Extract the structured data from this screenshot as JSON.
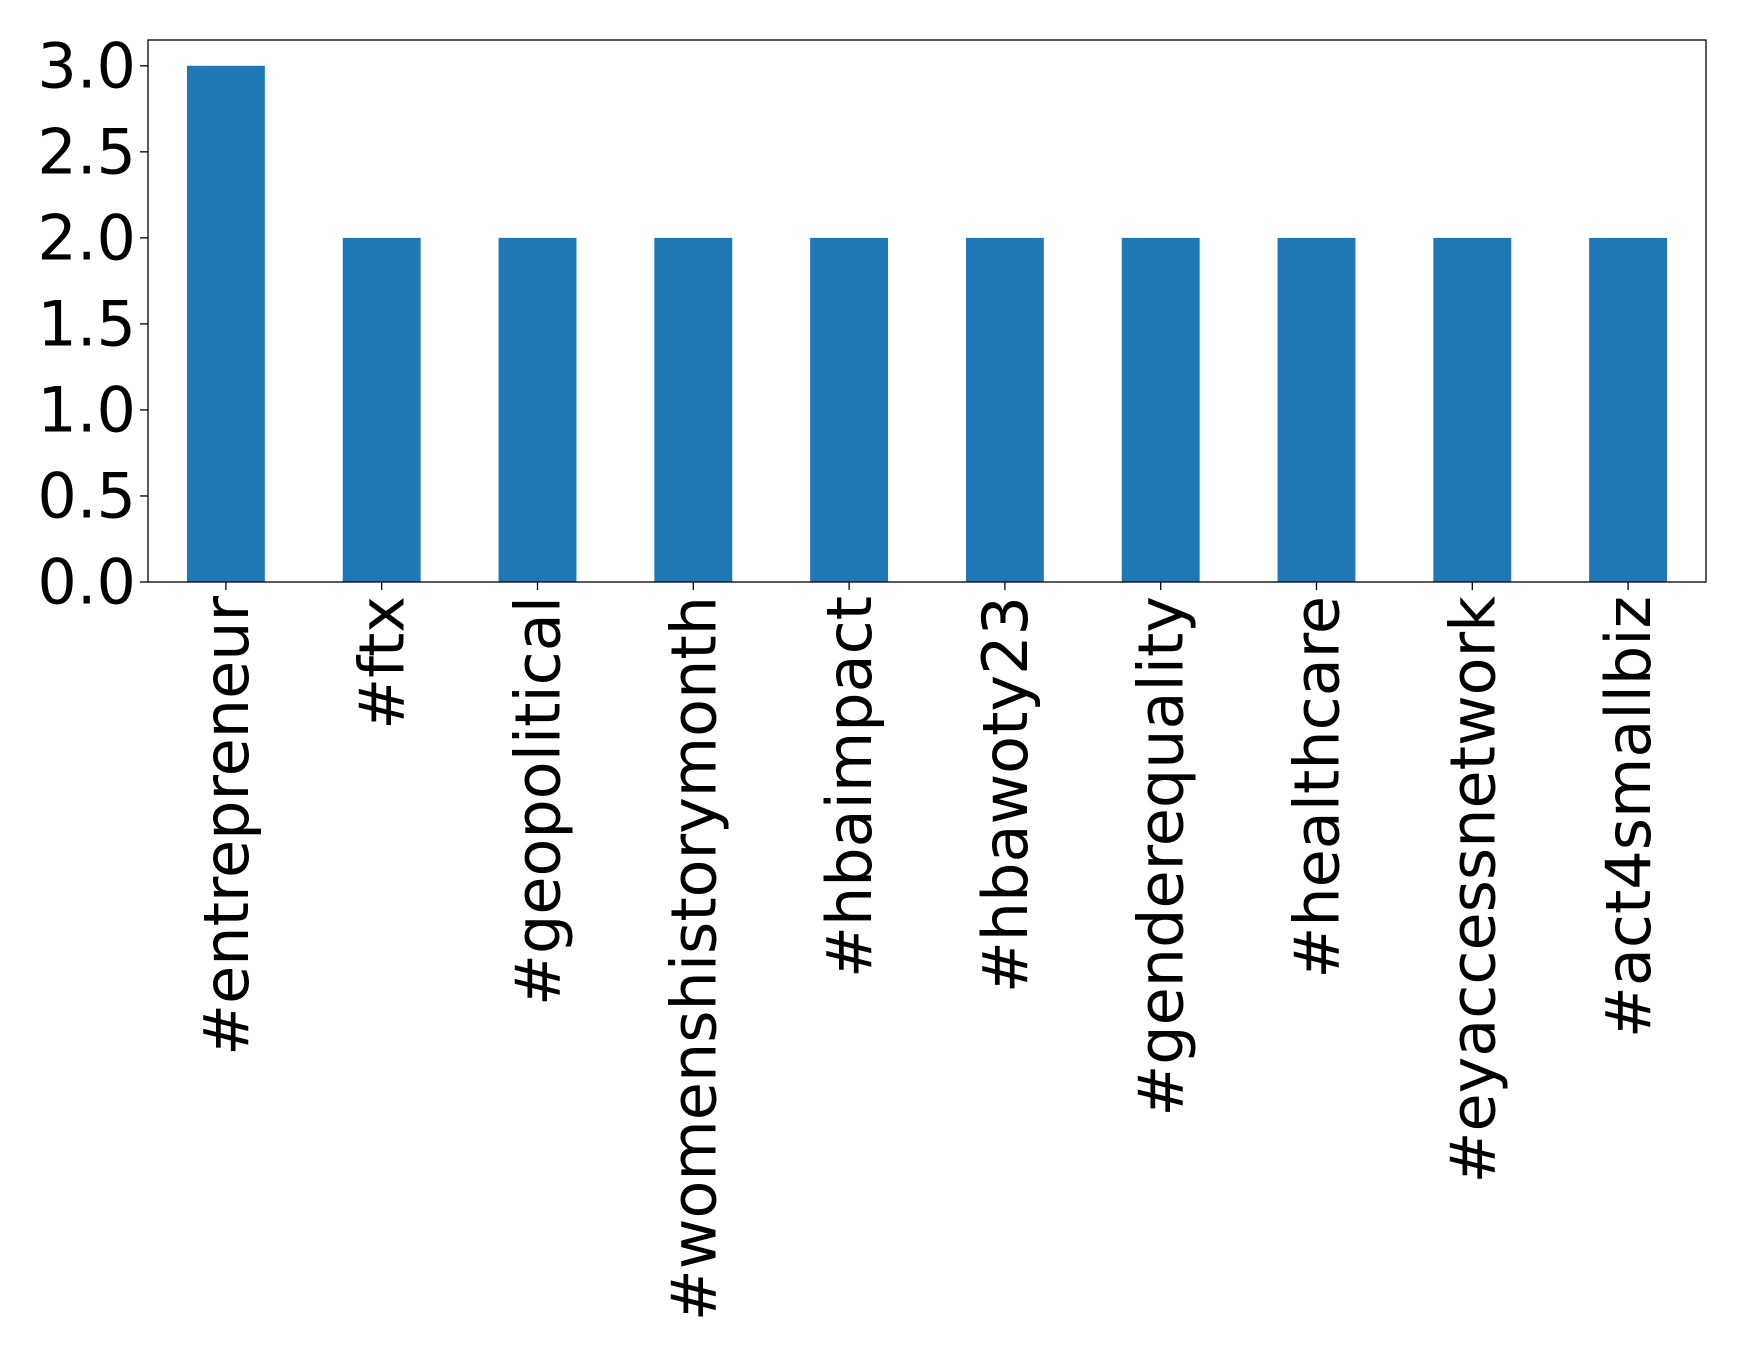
{
  "chart_data": {
    "type": "bar",
    "categories": [
      "#entrepreneur",
      "#ftx",
      "#geopolitical",
      "#womenshistorymonth",
      "#hbaimpact",
      "#hbawoty23",
      "#genderequality",
      "#healthcare",
      "#eyaccessnetwork",
      "#act4smallbiz"
    ],
    "values": [
      3,
      2,
      2,
      2,
      2,
      2,
      2,
      2,
      2,
      2
    ],
    "ylim": [
      0,
      3.15
    ],
    "yticks": [
      "0.0",
      "0.5",
      "1.0",
      "1.5",
      "2.0",
      "2.5",
      "3.0"
    ],
    "bar_color": "#1f77b4",
    "title": "",
    "xlabel": "",
    "ylabel": "",
    "grid": false,
    "legend": "none"
  }
}
